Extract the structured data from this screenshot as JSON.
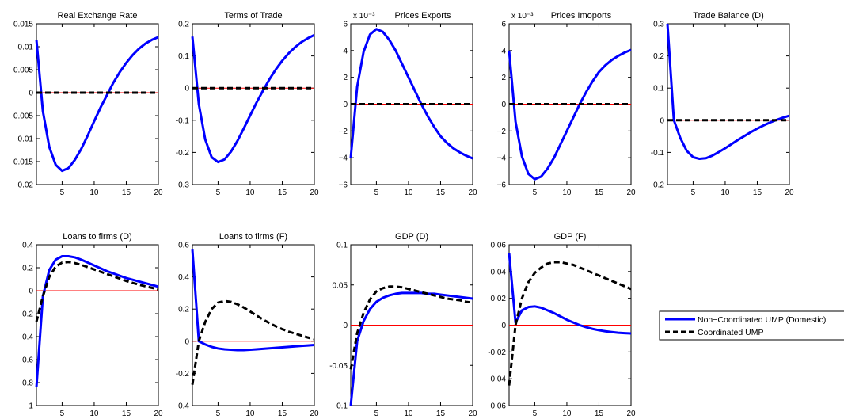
{
  "legend": {
    "entries": [
      {
        "label": "Non−Coordinated UMP (Domestic)",
        "color": "#0000ff",
        "dash": "solid"
      },
      {
        "label": "Coordinated UMP",
        "color": "#000000",
        "dash": "dashed"
      }
    ]
  },
  "zero_line_color": "#ff0000",
  "chart_data": [
    {
      "type": "line",
      "title": "Real Exchange Rate",
      "exponent": "",
      "xlim": [
        1,
        20
      ],
      "ylim": [
        -0.02,
        0.015
      ],
      "xticks": [
        5,
        10,
        15,
        20
      ],
      "xtick_labels": [
        "5",
        "10",
        "15",
        "20"
      ],
      "yticks": [
        -0.02,
        -0.015,
        -0.01,
        -0.005,
        0,
        0.005,
        0.01,
        0.015
      ],
      "ytick_labels": [
        "-0.02",
        "-0.015",
        "-0.01",
        "-0.005",
        "0",
        "0.005",
        "0.01",
        "0.015"
      ],
      "x": [
        1,
        2,
        3,
        4,
        5,
        6,
        7,
        8,
        9,
        10,
        11,
        12,
        13,
        14,
        15,
        16,
        17,
        18,
        19,
        20
      ],
      "series": [
        {
          "name": "Non−Coordinated UMP (Domestic)",
          "color": "#0000ff",
          "dash": "solid",
          "values": [
            0.0115,
            -0.004,
            -0.0118,
            -0.0157,
            -0.017,
            -0.0164,
            -0.0146,
            -0.0122,
            -0.0093,
            -0.0062,
            -0.0032,
            -0.0005,
            0.0022,
            0.0045,
            0.0065,
            0.0082,
            0.0096,
            0.0107,
            0.0115,
            0.0121
          ]
        },
        {
          "name": "Coordinated UMP",
          "color": "#000000",
          "dash": "dashed",
          "values": [
            0,
            0,
            0,
            0,
            0,
            0,
            0,
            0,
            0,
            0,
            0,
            0,
            0,
            0,
            0,
            0,
            0,
            0,
            0,
            0
          ]
        }
      ]
    },
    {
      "type": "line",
      "title": "Terms of Trade",
      "exponent": "",
      "xlim": [
        1,
        20
      ],
      "ylim": [
        -0.3,
        0.2
      ],
      "xticks": [
        5,
        10,
        15,
        20
      ],
      "xtick_labels": [
        "5",
        "10",
        "15",
        "20"
      ],
      "yticks": [
        -0.3,
        -0.2,
        -0.1,
        0,
        0.1,
        0.2
      ],
      "ytick_labels": [
        "-0.3",
        "-0.2",
        "-0.1",
        "0",
        "0.1",
        "0.2"
      ],
      "x": [
        1,
        2,
        3,
        4,
        5,
        6,
        7,
        8,
        9,
        10,
        11,
        12,
        13,
        14,
        15,
        16,
        17,
        18,
        19,
        20
      ],
      "series": [
        {
          "name": "Non−Coordinated UMP (Domestic)",
          "color": "#0000ff",
          "dash": "solid",
          "values": [
            0.16,
            -0.05,
            -0.16,
            -0.215,
            -0.23,
            -0.222,
            -0.198,
            -0.165,
            -0.126,
            -0.085,
            -0.045,
            -0.008,
            0.027,
            0.058,
            0.085,
            0.108,
            0.127,
            0.143,
            0.155,
            0.165
          ]
        },
        {
          "name": "Coordinated UMP",
          "color": "#000000",
          "dash": "dashed",
          "values": [
            0,
            0,
            0,
            0,
            0,
            0,
            0,
            0,
            0,
            0,
            0,
            0,
            0,
            0,
            0,
            0,
            0,
            0,
            0,
            0
          ]
        }
      ]
    },
    {
      "type": "line",
      "title": "Prices Exports",
      "exponent": "x 10⁻³",
      "xlim": [
        1,
        20
      ],
      "ylim": [
        -6,
        6
      ],
      "xticks": [
        5,
        10,
        15,
        20
      ],
      "xtick_labels": [
        "5",
        "10",
        "15",
        "20"
      ],
      "yticks": [
        -6,
        -4,
        -2,
        0,
        2,
        4,
        6
      ],
      "ytick_labels": [
        "−6",
        "−4",
        "−2",
        "0",
        "2",
        "4",
        "6"
      ],
      "x": [
        1,
        2,
        3,
        4,
        5,
        6,
        7,
        8,
        9,
        10,
        11,
        12,
        13,
        14,
        15,
        16,
        17,
        18,
        19,
        20
      ],
      "series": [
        {
          "name": "Non−Coordinated UMP (Domestic)",
          "color": "#0000ff",
          "dash": "solid",
          "values": [
            -4,
            1.3,
            3.9,
            5.2,
            5.6,
            5.4,
            4.8,
            4.0,
            3.0,
            2.0,
            1.0,
            0.0,
            -0.9,
            -1.7,
            -2.4,
            -2.9,
            -3.3,
            -3.6,
            -3.85,
            -4.05
          ]
        },
        {
          "name": "Coordinated UMP",
          "color": "#000000",
          "dash": "dashed",
          "values": [
            0,
            0,
            0,
            0,
            0,
            0,
            0,
            0,
            0,
            0,
            0,
            0,
            0,
            0,
            0,
            0,
            0,
            0,
            0,
            0
          ]
        }
      ]
    },
    {
      "type": "line",
      "title": "Prices Imoports",
      "exponent": "x 10⁻³",
      "xlim": [
        1,
        20
      ],
      "ylim": [
        -6,
        6
      ],
      "xticks": [
        5,
        10,
        15,
        20
      ],
      "xtick_labels": [
        "5",
        "10",
        "15",
        "20"
      ],
      "yticks": [
        -6,
        -4,
        -2,
        0,
        2,
        4,
        6
      ],
      "ytick_labels": [
        "−6",
        "−4",
        "−2",
        "0",
        "2",
        "4",
        "6"
      ],
      "x": [
        1,
        2,
        3,
        4,
        5,
        6,
        7,
        8,
        9,
        10,
        11,
        12,
        13,
        14,
        15,
        16,
        17,
        18,
        19,
        20
      ],
      "series": [
        {
          "name": "Non−Coordinated UMP (Domestic)",
          "color": "#0000ff",
          "dash": "solid",
          "values": [
            4.0,
            -1.3,
            -3.9,
            -5.2,
            -5.6,
            -5.4,
            -4.8,
            -4.0,
            -3.0,
            -2.0,
            -1.0,
            0.0,
            0.9,
            1.7,
            2.4,
            2.9,
            3.3,
            3.6,
            3.85,
            4.05
          ]
        },
        {
          "name": "Coordinated UMP",
          "color": "#000000",
          "dash": "dashed",
          "values": [
            0,
            0,
            0,
            0,
            0,
            0,
            0,
            0,
            0,
            0,
            0,
            0,
            0,
            0,
            0,
            0,
            0,
            0,
            0,
            0
          ]
        }
      ]
    },
    {
      "type": "line",
      "title": "Trade Balance (D)",
      "exponent": "",
      "xlim": [
        1,
        20
      ],
      "ylim": [
        -0.2,
        0.3
      ],
      "xticks": [
        5,
        10,
        15,
        20
      ],
      "xtick_labels": [
        "5",
        "10",
        "15",
        "20"
      ],
      "yticks": [
        -0.2,
        -0.1,
        0,
        0.1,
        0.2,
        0.3
      ],
      "ytick_labels": [
        "-0.2",
        "-0.1",
        "0",
        "0.1",
        "0.2",
        "0.3"
      ],
      "x": [
        1,
        2,
        3,
        4,
        5,
        6,
        7,
        8,
        9,
        10,
        11,
        12,
        13,
        14,
        15,
        16,
        17,
        18,
        19,
        20
      ],
      "series": [
        {
          "name": "Non−Coordinated UMP (Domestic)",
          "color": "#0000ff",
          "dash": "solid",
          "values": [
            0.3,
            0.0,
            -0.055,
            -0.095,
            -0.115,
            -0.12,
            -0.118,
            -0.11,
            -0.099,
            -0.087,
            -0.074,
            -0.061,
            -0.049,
            -0.037,
            -0.026,
            -0.016,
            -0.007,
            0.001,
            0.008,
            0.014
          ]
        },
        {
          "name": "Coordinated UMP",
          "color": "#000000",
          "dash": "dashed",
          "values": [
            0,
            0,
            0,
            0,
            0,
            0,
            0,
            0,
            0,
            0,
            0,
            0,
            0,
            0,
            0,
            0,
            0,
            0,
            0,
            0
          ]
        }
      ]
    },
    {
      "type": "line",
      "title": "Loans to firms (D)",
      "exponent": "",
      "xlim": [
        1,
        20
      ],
      "ylim": [
        -1,
        0.4
      ],
      "xticks": [
        5,
        10,
        15,
        20
      ],
      "xtick_labels": [
        "5",
        "10",
        "15",
        "20"
      ],
      "yticks": [
        -1,
        -0.8,
        -0.6,
        -0.4,
        -0.2,
        0,
        0.2,
        0.4
      ],
      "ytick_labels": [
        "-1",
        "-0.8",
        "-0.6",
        "-0.4",
        "-0.2",
        "0",
        "0.2",
        "0.4"
      ],
      "x": [
        1,
        2,
        3,
        4,
        5,
        6,
        7,
        8,
        9,
        10,
        11,
        12,
        13,
        14,
        15,
        16,
        17,
        18,
        19,
        20
      ],
      "series": [
        {
          "name": "Non−Coordinated UMP (Domestic)",
          "color": "#0000ff",
          "dash": "solid",
          "values": [
            -0.84,
            -0.05,
            0.18,
            0.27,
            0.3,
            0.3,
            0.29,
            0.27,
            0.245,
            0.22,
            0.195,
            0.17,
            0.15,
            0.13,
            0.11,
            0.095,
            0.08,
            0.065,
            0.05,
            0.035
          ]
        },
        {
          "name": "Coordinated UMP",
          "color": "#000000",
          "dash": "dashed",
          "values": [
            -0.27,
            -0.05,
            0.12,
            0.21,
            0.245,
            0.25,
            0.24,
            0.225,
            0.205,
            0.185,
            0.165,
            0.145,
            0.125,
            0.105,
            0.085,
            0.068,
            0.052,
            0.038,
            0.025,
            0.012
          ]
        }
      ]
    },
    {
      "type": "line",
      "title": "Loans to firms (F)",
      "exponent": "",
      "xlim": [
        1,
        20
      ],
      "ylim": [
        -0.4,
        0.6
      ],
      "xticks": [
        5,
        10,
        15,
        20
      ],
      "xtick_labels": [
        "5",
        "10",
        "15",
        "20"
      ],
      "yticks": [
        -0.4,
        -0.2,
        0,
        0.2,
        0.4,
        0.6
      ],
      "ytick_labels": [
        "-0.4",
        "-0.2",
        "0",
        "0.2",
        "0.4",
        "0.6"
      ],
      "x": [
        1,
        2,
        3,
        4,
        5,
        6,
        7,
        8,
        9,
        10,
        11,
        12,
        13,
        14,
        15,
        16,
        17,
        18,
        19,
        20
      ],
      "series": [
        {
          "name": "Non−Coordinated UMP (Domestic)",
          "color": "#0000ff",
          "dash": "solid",
          "values": [
            0.57,
            0.0,
            -0.02,
            -0.035,
            -0.045,
            -0.05,
            -0.053,
            -0.055,
            -0.055,
            -0.053,
            -0.05,
            -0.047,
            -0.044,
            -0.041,
            -0.038,
            -0.035,
            -0.032,
            -0.029,
            -0.026,
            -0.023
          ]
        },
        {
          "name": "Coordinated UMP",
          "color": "#000000",
          "dash": "dashed",
          "values": [
            -0.27,
            0.0,
            0.12,
            0.2,
            0.24,
            0.25,
            0.245,
            0.23,
            0.21,
            0.185,
            0.16,
            0.135,
            0.113,
            0.093,
            0.075,
            0.06,
            0.047,
            0.035,
            0.023,
            0.013
          ]
        }
      ]
    },
    {
      "type": "line",
      "title": "GDP (D)",
      "exponent": "",
      "xlim": [
        1,
        20
      ],
      "ylim": [
        -0.1,
        0.1
      ],
      "xticks": [
        5,
        10,
        15,
        20
      ],
      "xtick_labels": [
        "5",
        "10",
        "15",
        "20"
      ],
      "yticks": [
        -0.1,
        -0.05,
        0,
        0.05,
        0.1
      ],
      "ytick_labels": [
        "-0.1",
        "-0.05",
        "0",
        "0.05",
        "0.1"
      ],
      "x": [
        1,
        2,
        3,
        4,
        5,
        6,
        7,
        8,
        9,
        10,
        11,
        12,
        13,
        14,
        15,
        16,
        17,
        18,
        19,
        20
      ],
      "series": [
        {
          "name": "Non−Coordinated UMP (Domestic)",
          "color": "#0000ff",
          "dash": "solid",
          "values": [
            -0.1,
            -0.02,
            0.005,
            0.02,
            0.029,
            0.034,
            0.037,
            0.039,
            0.04,
            0.04,
            0.04,
            0.04,
            0.039,
            0.039,
            0.038,
            0.037,
            0.036,
            0.035,
            0.034,
            0.033
          ]
        },
        {
          "name": "Coordinated UMP",
          "color": "#000000",
          "dash": "dashed",
          "values": [
            -0.055,
            -0.01,
            0.015,
            0.032,
            0.042,
            0.046,
            0.048,
            0.048,
            0.047,
            0.045,
            0.043,
            0.041,
            0.039,
            0.037,
            0.035,
            0.033,
            0.032,
            0.031,
            0.029,
            0.028
          ]
        }
      ]
    },
    {
      "type": "line",
      "title": "GDP (F)",
      "exponent": "",
      "xlim": [
        1,
        20
      ],
      "ylim": [
        -0.06,
        0.06
      ],
      "xticks": [
        5,
        10,
        15,
        20
      ],
      "xtick_labels": [
        "5",
        "10",
        "15",
        "20"
      ],
      "yticks": [
        -0.06,
        -0.04,
        -0.02,
        0,
        0.02,
        0.04,
        0.06
      ],
      "ytick_labels": [
        "-0.06",
        "-0.04",
        "-0.02",
        "0",
        "0.02",
        "0.04",
        "0.06"
      ],
      "x": [
        1,
        2,
        3,
        4,
        5,
        6,
        7,
        8,
        9,
        10,
        11,
        12,
        13,
        14,
        15,
        16,
        17,
        18,
        19,
        20
      ],
      "series": [
        {
          "name": "Non−Coordinated UMP (Domestic)",
          "color": "#0000ff",
          "dash": "solid",
          "values": [
            0.054,
            0.002,
            0.011,
            0.0135,
            0.014,
            0.013,
            0.011,
            0.009,
            0.0065,
            0.004,
            0.002,
            0.0,
            -0.0015,
            -0.0028,
            -0.0038,
            -0.0046,
            -0.0052,
            -0.0057,
            -0.006,
            -0.0062
          ]
        },
        {
          "name": "Coordinated UMP",
          "color": "#000000",
          "dash": "dashed",
          "values": [
            -0.045,
            0.0,
            0.02,
            0.032,
            0.039,
            0.043,
            0.046,
            0.047,
            0.047,
            0.046,
            0.045,
            0.043,
            0.041,
            0.039,
            0.037,
            0.035,
            0.033,
            0.031,
            0.029,
            0.027
          ]
        }
      ]
    }
  ]
}
